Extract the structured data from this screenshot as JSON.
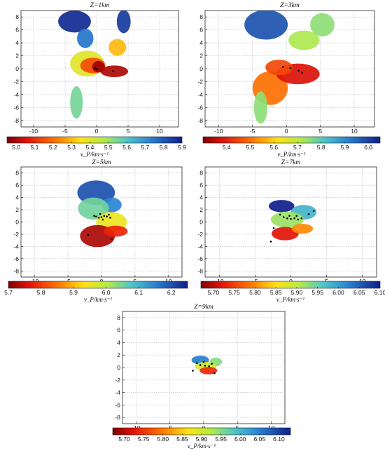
{
  "chart_data": [
    {
      "type": "heatmap",
      "title": "Z=1km",
      "xlim": [
        -12,
        13
      ],
      "ylim": [
        -9,
        9
      ],
      "x_ticks": [
        "-10",
        "-5",
        "0",
        "5",
        "10"
      ],
      "y_ticks": [
        "8",
        "6",
        "4",
        "2",
        "0",
        "-2",
        "-4",
        "-6",
        "-8"
      ],
      "colorbar": {
        "label": "v_P/km·s⁻¹",
        "ticks": [
          "5.0",
          "5.1",
          "5.2",
          "5.3",
          "5.4",
          "5.5",
          "5.6",
          "5.7",
          "5.8",
          "5.9"
        ],
        "range": [
          4.95,
          5.9
        ]
      },
      "grid": true,
      "velocity_blobs": [
        {
          "x": -3.5,
          "y": 7.3,
          "rx": 2.6,
          "ry": 1.7,
          "v": 5.88
        },
        {
          "x": -1.8,
          "y": 4.7,
          "rx": 1.3,
          "ry": 1.5,
          "v": 5.75
        },
        {
          "x": 4.3,
          "y": 7.3,
          "rx": 1.1,
          "ry": 1.8,
          "v": 5.85
        },
        {
          "x": 3.3,
          "y": 3.3,
          "rx": 1.4,
          "ry": 1.3,
          "v": 5.3
        },
        {
          "x": -1.5,
          "y": 0.8,
          "rx": 2.7,
          "ry": 2.0,
          "v": 5.4
        },
        {
          "x": -0.6,
          "y": 0.5,
          "rx": 2.0,
          "ry": 1.2,
          "v": 5.15
        },
        {
          "x": 0.3,
          "y": 0.3,
          "rx": 1.0,
          "ry": 0.9,
          "v": 4.98
        },
        {
          "x": 2.8,
          "y": -0.4,
          "rx": 2.2,
          "ry": 0.9,
          "v": 5.0
        },
        {
          "x": -3.2,
          "y": -5.2,
          "rx": 1.0,
          "ry": 2.5,
          "v": 5.55
        }
      ],
      "events": [
        [
          -0.2,
          0.1
        ],
        [
          0.1,
          -0.1
        ],
        [
          2.6,
          -0.4
        ]
      ]
    },
    {
      "type": "heatmap",
      "title": "Z=3km",
      "xlim": [
        -12,
        13
      ],
      "ylim": [
        -9,
        9
      ],
      "x_ticks": [
        "-10",
        "-5",
        "0",
        "5",
        "10"
      ],
      "y_ticks": [
        "8",
        "6",
        "4",
        "2",
        "0",
        "-2",
        "-4",
        "-6",
        "-8"
      ],
      "colorbar": {
        "label": "v_P/km·s⁻¹",
        "ticks": [
          "5.4",
          "5.5",
          "5.6",
          "5.7",
          "5.8",
          "5.9",
          "6.0"
        ],
        "range": [
          5.3,
          6.05
        ]
      },
      "grid": true,
      "velocity_blobs": [
        {
          "x": -3.0,
          "y": 6.8,
          "rx": 3.2,
          "ry": 2.3,
          "v": 5.98
        },
        {
          "x": 2.6,
          "y": 4.4,
          "rx": 2.3,
          "ry": 1.5,
          "v": 5.72
        },
        {
          "x": 5.3,
          "y": 6.8,
          "rx": 1.8,
          "ry": 1.8,
          "v": 5.75
        },
        {
          "x": -2.4,
          "y": -3.0,
          "rx": 2.6,
          "ry": 2.6,
          "v": 5.5
        },
        {
          "x": -3.8,
          "y": -6.0,
          "rx": 1.0,
          "ry": 2.5,
          "v": 5.75
        },
        {
          "x": 1.7,
          "y": -0.8,
          "rx": 3.2,
          "ry": 1.6,
          "v": 5.38
        },
        {
          "x": -1.1,
          "y": 0.2,
          "rx": 2.0,
          "ry": 1.2,
          "v": 5.45
        }
      ],
      "events": [
        [
          -0.5,
          0.3
        ],
        [
          0.6,
          0.1
        ],
        [
          1.8,
          -0.3
        ],
        [
          2.3,
          -0.6
        ]
      ]
    },
    {
      "type": "heatmap",
      "title": "Z=5km",
      "xlim": [
        -12,
        12
      ],
      "ylim": [
        -9,
        9
      ],
      "x_ticks": [
        "-10",
        "-5",
        "0",
        "5",
        "10"
      ],
      "y_ticks": [
        "8",
        "6",
        "4",
        "2",
        "0",
        "-2",
        "-4",
        "-6",
        "-8"
      ],
      "colorbar": {
        "label": "v_P/km·s⁻¹",
        "ticks": [
          "5.7",
          "5.8",
          "5.9",
          "6.0",
          "6.1",
          "6.2"
        ],
        "range": [
          5.7,
          6.25
        ]
      },
      "grid": true,
      "velocity_blobs": [
        {
          "x": -0.8,
          "y": 4.8,
          "rx": 2.8,
          "ry": 2.0,
          "v": 6.2
        },
        {
          "x": 1.5,
          "y": 2.8,
          "rx": 1.5,
          "ry": 1.2,
          "v": 6.15
        },
        {
          "x": -1.2,
          "y": 2.2,
          "rx": 2.3,
          "ry": 1.8,
          "v": 6.05
        },
        {
          "x": 1.5,
          "y": 0.0,
          "rx": 2.3,
          "ry": 1.6,
          "v": 5.95
        },
        {
          "x": -0.6,
          "y": -2.3,
          "rx": 2.6,
          "ry": 1.8,
          "v": 5.73
        },
        {
          "x": 2.1,
          "y": -1.5,
          "rx": 1.8,
          "ry": 0.9,
          "v": 5.78
        }
      ],
      "events": [
        [
          -0.8,
          0.9
        ],
        [
          -0.4,
          0.7
        ],
        [
          0.0,
          0.8
        ],
        [
          0.4,
          1.0
        ],
        [
          0.8,
          0.9
        ],
        [
          -1.1,
          1.0
        ],
        [
          1.3,
          0.7
        ],
        [
          0.2,
          0.4
        ],
        [
          -0.2,
          1.3
        ],
        [
          1.1,
          1.2
        ],
        [
          -2.0,
          -2.1
        ],
        [
          1.5,
          -2.8
        ]
      ]
    },
    {
      "type": "heatmap",
      "title": "Z=7km",
      "xlim": [
        -12,
        12
      ],
      "ylim": [
        -9,
        9
      ],
      "x_ticks": [
        "-10",
        "-5",
        "0",
        "5",
        "10"
      ],
      "y_ticks": [
        "8",
        "6",
        "4",
        "2",
        "0",
        "-2",
        "-4",
        "-6",
        "-8"
      ],
      "colorbar": {
        "label": "v_P/km·s⁻¹",
        "ticks": [
          "5.70",
          "5.75",
          "5.80",
          "5.85",
          "5.90",
          "5.95",
          "6.00",
          "6.05",
          "6.10"
        ],
        "range": [
          5.67,
          6.1
        ]
      },
      "grid": true,
      "velocity_blobs": [
        {
          "x": -1.3,
          "y": 2.6,
          "rx": 1.8,
          "ry": 1.0,
          "v": 6.1
        },
        {
          "x": 1.8,
          "y": 1.6,
          "rx": 1.8,
          "ry": 1.2,
          "v": 5.98
        },
        {
          "x": -0.5,
          "y": 0.4,
          "rx": 2.3,
          "ry": 1.3,
          "v": 5.92
        },
        {
          "x": -0.8,
          "y": -1.9,
          "rx": 1.9,
          "ry": 1.1,
          "v": 5.72
        },
        {
          "x": 1.6,
          "y": -1.1,
          "rx": 1.5,
          "ry": 0.8,
          "v": 5.8
        }
      ],
      "events": [
        [
          -1.0,
          0.8
        ],
        [
          -0.5,
          0.6
        ],
        [
          0.0,
          0.5
        ],
        [
          0.5,
          0.6
        ],
        [
          1.0,
          0.4
        ],
        [
          1.5,
          0.6
        ],
        [
          -1.5,
          1.2
        ],
        [
          -0.2,
          1.0
        ],
        [
          0.8,
          1.0
        ],
        [
          2.5,
          1.3
        ],
        [
          3.2,
          1.8
        ],
        [
          -2.4,
          -1.0
        ],
        [
          -2.8,
          -3.2
        ]
      ]
    },
    {
      "type": "heatmap",
      "title": "Z=9km",
      "xlim": [
        -12,
        12
      ],
      "ylim": [
        -9,
        9
      ],
      "x_ticks": [
        "-10",
        "-5",
        "0",
        "5",
        "10"
      ],
      "y_ticks": [
        "8",
        "6",
        "4",
        "2",
        "0",
        "-2",
        "-4",
        "-6",
        "-8"
      ],
      "colorbar": {
        "label": "v_P/km·s⁻¹",
        "ticks": [
          "5.70",
          "5.75",
          "5.80",
          "5.85",
          "5.90",
          "5.95",
          "6.00",
          "6.05",
          "6.10"
        ],
        "range": [
          5.67,
          6.13
        ]
      },
      "grid": true,
      "velocity_blobs": [
        {
          "x": -0.5,
          "y": 1.2,
          "rx": 1.3,
          "ry": 0.7,
          "v": 6.05
        },
        {
          "x": 1.8,
          "y": 0.9,
          "rx": 0.9,
          "ry": 0.7,
          "v": 5.95
        },
        {
          "x": 0.3,
          "y": 0.2,
          "rx": 1.6,
          "ry": 0.7,
          "v": 5.9
        },
        {
          "x": 0.7,
          "y": -0.5,
          "rx": 1.3,
          "ry": 0.6,
          "v": 5.74
        }
      ],
      "events": [
        [
          -1.0,
          0.7
        ],
        [
          -0.5,
          0.4
        ],
        [
          0.2,
          0.3
        ],
        [
          0.8,
          0.2
        ],
        [
          1.2,
          0.6
        ],
        [
          0.0,
          0.9
        ],
        [
          -1.6,
          -0.5
        ],
        [
          1.6,
          -0.9
        ]
      ]
    }
  ]
}
